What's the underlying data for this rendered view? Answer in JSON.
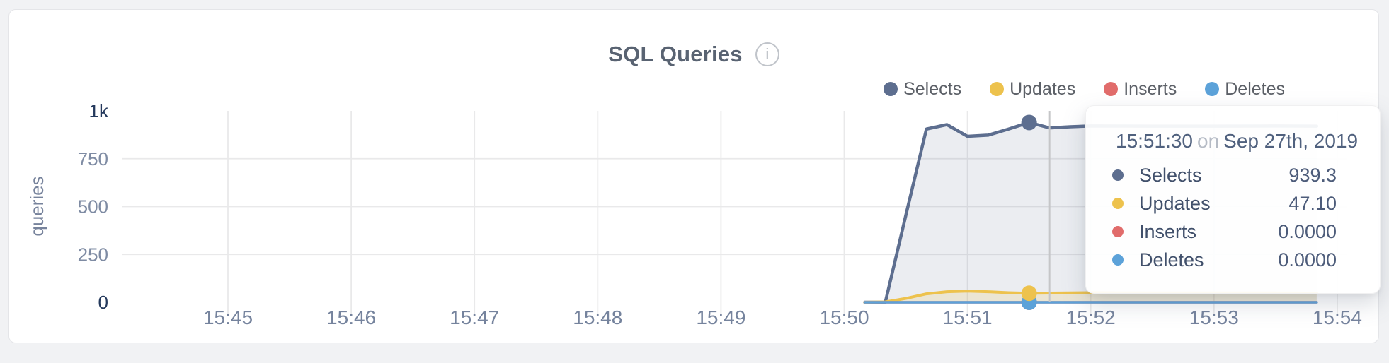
{
  "page": {
    "background": "#f1f2f4",
    "card_background": "#ffffff"
  },
  "header": {
    "title": "SQL Queries",
    "info_glyph": "i"
  },
  "legend": {
    "items": [
      {
        "label": "Selects",
        "color": "#5d6e8f"
      },
      {
        "label": "Updates",
        "color": "#edc24d"
      },
      {
        "label": "Inserts",
        "color": "#e16c6b"
      },
      {
        "label": "Deletes",
        "color": "#5ca2d9"
      }
    ]
  },
  "chart_data": {
    "type": "area",
    "title": "SQL Queries",
    "xlabel": "",
    "ylabel": "queries",
    "ylim": [
      0,
      1000
    ],
    "grid": true,
    "legend_position": "top-right",
    "x_ticks": [
      "15:45",
      "15:46",
      "15:47",
      "15:48",
      "15:49",
      "15:50",
      "15:51",
      "15:52",
      "15:53",
      "15:54"
    ],
    "y_ticks": [
      {
        "label": "1k",
        "value": 1000,
        "emphasis": true,
        "grid": false
      },
      {
        "label": "750",
        "value": 750,
        "emphasis": false,
        "grid": true
      },
      {
        "label": "500",
        "value": 500,
        "emphasis": false,
        "grid": true
      },
      {
        "label": "250",
        "value": 250,
        "emphasis": false,
        "grid": true
      },
      {
        "label": "0",
        "value": 0,
        "emphasis": true,
        "grid": false
      }
    ],
    "series": [
      {
        "name": "Selects",
        "color": "#5d6e8f",
        "fill": "rgba(93,110,143,0.12)",
        "width": 4.5,
        "points": [
          [
            "15:50:10",
            0
          ],
          [
            "15:50:20",
            0
          ],
          [
            "15:50:30",
            455
          ],
          [
            "15:50:40",
            905
          ],
          [
            "15:50:50",
            928
          ],
          [
            "15:51:00",
            867
          ],
          [
            "15:51:10",
            873
          ],
          [
            "15:51:20",
            905
          ],
          [
            "15:51:30",
            939.3
          ],
          [
            "15:51:40",
            911
          ],
          [
            "15:51:50",
            917
          ],
          [
            "15:52:00",
            921
          ],
          [
            "15:52:30",
            920
          ],
          [
            "15:53:00",
            920
          ],
          [
            "15:53:30",
            921
          ],
          [
            "15:53:50",
            920
          ]
        ]
      },
      {
        "name": "Updates",
        "color": "#edc24d",
        "fill": "rgba(237,194,77,0.18)",
        "width": 4,
        "points": [
          [
            "15:50:10",
            0
          ],
          [
            "15:50:20",
            2
          ],
          [
            "15:50:30",
            20
          ],
          [
            "15:50:40",
            44
          ],
          [
            "15:50:50",
            55
          ],
          [
            "15:51:00",
            58
          ],
          [
            "15:51:10",
            55
          ],
          [
            "15:51:20",
            50
          ],
          [
            "15:51:30",
            47.1
          ],
          [
            "15:51:40",
            48
          ],
          [
            "15:51:50",
            49
          ],
          [
            "15:52:00",
            50
          ],
          [
            "15:52:30",
            49
          ],
          [
            "15:53:00",
            49
          ],
          [
            "15:53:30",
            49
          ],
          [
            "15:53:50",
            48
          ]
        ]
      },
      {
        "name": "Inserts",
        "color": "#e16c6b",
        "fill": null,
        "width": 3.5,
        "points": [
          [
            "15:50:10",
            0
          ],
          [
            "15:51:30",
            0
          ],
          [
            "15:53:50",
            0
          ]
        ]
      },
      {
        "name": "Deletes",
        "color": "#5ca2d9",
        "fill": null,
        "width": 3.5,
        "points": [
          [
            "15:50:10",
            0
          ],
          [
            "15:51:30",
            0
          ],
          [
            "15:53:50",
            0
          ]
        ]
      }
    ],
    "hover": {
      "marker_time": "15:51:30",
      "crosshair_time": "15:51:40",
      "marker_draw_order": [
        "Inserts",
        "Deletes",
        "Updates",
        "Selects"
      ]
    }
  },
  "tooltip": {
    "time": "15:51:30",
    "connector": "on",
    "date": "Sep 27th, 2019",
    "rows": [
      {
        "label": "Selects",
        "value": "939.3",
        "color": "#5d6e8f"
      },
      {
        "label": "Updates",
        "value": "47.10",
        "color": "#edc24d"
      },
      {
        "label": "Inserts",
        "value": "0.0000",
        "color": "#e16c6b"
      },
      {
        "label": "Deletes",
        "value": "0.0000",
        "color": "#5ca2d9"
      }
    ]
  }
}
